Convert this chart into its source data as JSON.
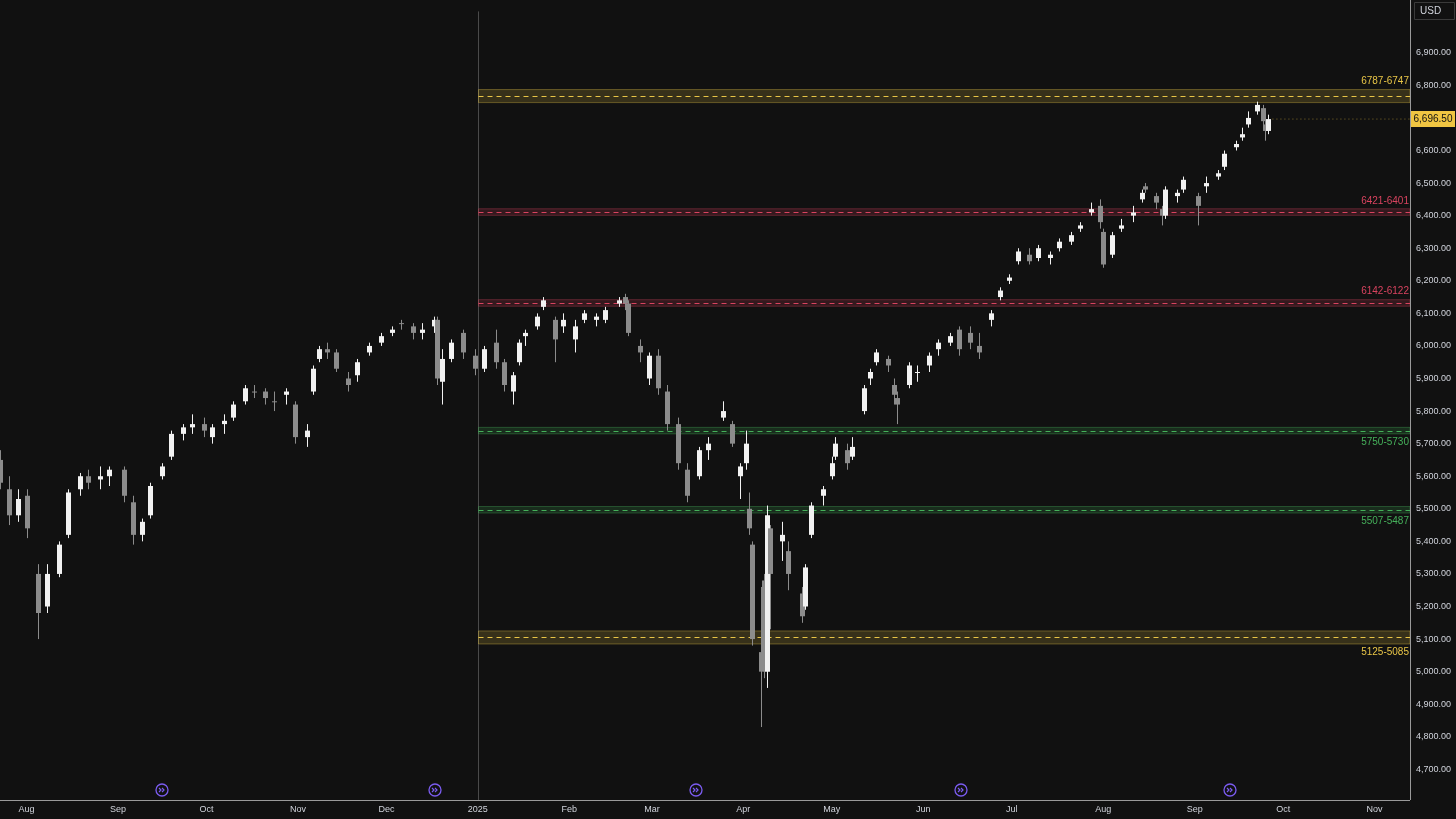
{
  "chart_data": {
    "type": "candlestick",
    "x": [
      "2024-07-23",
      "2024-07-26",
      "2024-07-29",
      "2024-08-01",
      "2024-08-05",
      "2024-08-08",
      "2024-08-12",
      "2024-08-15",
      "2024-08-19",
      "2024-08-22",
      "2024-08-26",
      "2024-08-29",
      "2024-09-03",
      "2024-09-06",
      "2024-09-09",
      "2024-09-12",
      "2024-09-16",
      "2024-09-19",
      "2024-09-23",
      "2024-09-26",
      "2024-09-30",
      "2024-10-03",
      "2024-10-07",
      "2024-10-10",
      "2024-10-14",
      "2024-10-17",
      "2024-10-21",
      "2024-10-24",
      "2024-10-28",
      "2024-10-31",
      "2024-11-04",
      "2024-11-06",
      "2024-11-08",
      "2024-11-11",
      "2024-11-14",
      "2024-11-18",
      "2024-11-21",
      "2024-11-25",
      "2024-11-29",
      "2024-12-03",
      "2024-12-06",
      "2024-12-10",
      "2024-12-13",
      "2024-12-17",
      "2024-12-18",
      "2024-12-20",
      "2024-12-23",
      "2024-12-27",
      "2024-12-31",
      "2025-01-03",
      "2025-01-07",
      "2025-01-10",
      "2025-01-13",
      "2025-01-15",
      "2025-01-17",
      "2025-01-21",
      "2025-01-23",
      "2025-01-27",
      "2025-01-30",
      "2025-02-03",
      "2025-02-06",
      "2025-02-10",
      "2025-02-13",
      "2025-02-18",
      "2025-02-20",
      "2025-02-21",
      "2025-02-25",
      "2025-02-28",
      "2025-03-03",
      "2025-03-06",
      "2025-03-10",
      "2025-03-13",
      "2025-03-17",
      "2025-03-20",
      "2025-03-25",
      "2025-03-28",
      "2025-03-31",
      "2025-04-02",
      "2025-04-03",
      "2025-04-04",
      "2025-04-07",
      "2025-04-08",
      "2025-04-09",
      "2025-04-10",
      "2025-04-14",
      "2025-04-16",
      "2025-04-21",
      "2025-04-22",
      "2025-04-24",
      "2025-04-28",
      "2025-05-01",
      "2025-05-02",
      "2025-05-06",
      "2025-05-08",
      "2025-05-12",
      "2025-05-14",
      "2025-05-16",
      "2025-05-20",
      "2025-05-22",
      "2025-05-23",
      "2025-05-27",
      "2025-05-30",
      "2025-06-03",
      "2025-06-06",
      "2025-06-10",
      "2025-06-13",
      "2025-06-17",
      "2025-06-20",
      "2025-06-24",
      "2025-06-27",
      "2025-06-30",
      "2025-07-03",
      "2025-07-07",
      "2025-07-10",
      "2025-07-14",
      "2025-07-17",
      "2025-07-21",
      "2025-07-24",
      "2025-07-28",
      "2025-07-31",
      "2025-08-01",
      "2025-08-04",
      "2025-08-07",
      "2025-08-11",
      "2025-08-14",
      "2025-08-15",
      "2025-08-19",
      "2025-08-21",
      "2025-08-22",
      "2025-08-26",
      "2025-08-28",
      "2025-09-02",
      "2025-09-05",
      "2025-09-09",
      "2025-09-11",
      "2025-09-15",
      "2025-09-17",
      "2025-09-19",
      "2025-09-22",
      "2025-09-24",
      "2025-09-25",
      "2025-09-26"
    ],
    "ohlc": [
      [
        5650,
        5680,
        5560,
        5580
      ],
      [
        5560,
        5600,
        5450,
        5480
      ],
      [
        5480,
        5560,
        5460,
        5530
      ],
      [
        5540,
        5560,
        5410,
        5440
      ],
      [
        5300,
        5330,
        5100,
        5180
      ],
      [
        5200,
        5330,
        5180,
        5300
      ],
      [
        5300,
        5400,
        5290,
        5390
      ],
      [
        5420,
        5560,
        5410,
        5550
      ],
      [
        5560,
        5610,
        5540,
        5600
      ],
      [
        5600,
        5620,
        5560,
        5580
      ],
      [
        5590,
        5630,
        5560,
        5600
      ],
      [
        5600,
        5630,
        5570,
        5620
      ],
      [
        5620,
        5630,
        5520,
        5540
      ],
      [
        5520,
        5540,
        5390,
        5420
      ],
      [
        5420,
        5470,
        5400,
        5460
      ],
      [
        5480,
        5580,
        5470,
        5570
      ],
      [
        5600,
        5640,
        5590,
        5630
      ],
      [
        5660,
        5740,
        5650,
        5730
      ],
      [
        5730,
        5760,
        5710,
        5750
      ],
      [
        5750,
        5790,
        5730,
        5760
      ],
      [
        5760,
        5780,
        5720,
        5740
      ],
      [
        5720,
        5760,
        5700,
        5750
      ],
      [
        5760,
        5790,
        5730,
        5770
      ],
      [
        5780,
        5830,
        5770,
        5820
      ],
      [
        5830,
        5880,
        5820,
        5870
      ],
      [
        5860,
        5880,
        5840,
        5860
      ],
      [
        5860,
        5870,
        5820,
        5840
      ],
      [
        5830,
        5860,
        5800,
        5830
      ],
      [
        5850,
        5870,
        5820,
        5860
      ],
      [
        5820,
        5830,
        5700,
        5720
      ],
      [
        5720,
        5760,
        5690,
        5740
      ],
      [
        5860,
        5940,
        5850,
        5930
      ],
      [
        5960,
        6000,
        5950,
        5990
      ],
      [
        5990,
        6010,
        5960,
        5980
      ],
      [
        5980,
        5990,
        5920,
        5930
      ],
      [
        5900,
        5920,
        5860,
        5880
      ],
      [
        5910,
        5960,
        5890,
        5950
      ],
      [
        5980,
        6010,
        5970,
        6000
      ],
      [
        6010,
        6040,
        6000,
        6030
      ],
      [
        6040,
        6060,
        6030,
        6050
      ],
      [
        6070,
        6080,
        6050,
        6070
      ],
      [
        6060,
        6070,
        6020,
        6040
      ],
      [
        6040,
        6070,
        6020,
        6050
      ],
      [
        6060,
        6090,
        6040,
        6080
      ],
      [
        6080,
        6090,
        5880,
        5900
      ],
      [
        5890,
        5990,
        5820,
        5960
      ],
      [
        5960,
        6020,
        5950,
        6010
      ],
      [
        6040,
        6050,
        5960,
        5980
      ],
      [
        5970,
        5990,
        5910,
        5930
      ],
      [
        5930,
        6000,
        5920,
        5990
      ],
      [
        6010,
        6050,
        5930,
        5950
      ],
      [
        5950,
        5960,
        5860,
        5880
      ],
      [
        5860,
        5920,
        5820,
        5910
      ],
      [
        5950,
        6020,
        5940,
        6010
      ],
      [
        6030,
        6050,
        6000,
        6040
      ],
      [
        6060,
        6100,
        6050,
        6090
      ],
      [
        6120,
        6150,
        6110,
        6140
      ],
      [
        6080,
        6090,
        5950,
        6020
      ],
      [
        6060,
        6100,
        6040,
        6080
      ],
      [
        6020,
        6080,
        5980,
        6060
      ],
      [
        6080,
        6110,
        6070,
        6100
      ],
      [
        6080,
        6100,
        6060,
        6090
      ],
      [
        6080,
        6120,
        6070,
        6110
      ],
      [
        6130,
        6150,
        6120,
        6140
      ],
      [
        6150,
        6160,
        6110,
        6130
      ],
      [
        6130,
        6140,
        6030,
        6040
      ],
      [
        6000,
        6020,
        5950,
        5980
      ],
      [
        5900,
        5980,
        5880,
        5970
      ],
      [
        5970,
        5990,
        5850,
        5870
      ],
      [
        5860,
        5880,
        5740,
        5760
      ],
      [
        5760,
        5780,
        5620,
        5640
      ],
      [
        5620,
        5640,
        5520,
        5540
      ],
      [
        5600,
        5690,
        5590,
        5680
      ],
      [
        5680,
        5720,
        5650,
        5700
      ],
      [
        5780,
        5830,
        5770,
        5800
      ],
      [
        5760,
        5770,
        5690,
        5700
      ],
      [
        5600,
        5640,
        5530,
        5630
      ],
      [
        5640,
        5740,
        5620,
        5700
      ],
      [
        5500,
        5550,
        5420,
        5440
      ],
      [
        5390,
        5400,
        5080,
        5100
      ],
      [
        5060,
        5260,
        4830,
        5000
      ],
      [
        5280,
        5300,
        4980,
        5020
      ],
      [
        5000,
        5510,
        4950,
        5480
      ],
      [
        5440,
        5450,
        5130,
        5300
      ],
      [
        5400,
        5460,
        5340,
        5420
      ],
      [
        5370,
        5400,
        5250,
        5300
      ],
      [
        5240,
        5260,
        5150,
        5170
      ],
      [
        5200,
        5330,
        5190,
        5320
      ],
      [
        5420,
        5520,
        5410,
        5510
      ],
      [
        5540,
        5570,
        5510,
        5560
      ],
      [
        5600,
        5660,
        5590,
        5640
      ],
      [
        5660,
        5720,
        5650,
        5700
      ],
      [
        5680,
        5700,
        5620,
        5640
      ],
      [
        5660,
        5720,
        5650,
        5690
      ],
      [
        5800,
        5880,
        5790,
        5870
      ],
      [
        5900,
        5930,
        5880,
        5920
      ],
      [
        5950,
        5990,
        5940,
        5980
      ],
      [
        5960,
        5970,
        5920,
        5940
      ],
      [
        5880,
        5900,
        5820,
        5850
      ],
      [
        5840,
        5860,
        5760,
        5820
      ],
      [
        5880,
        5950,
        5870,
        5940
      ],
      [
        5920,
        5940,
        5890,
        5920
      ],
      [
        5940,
        5980,
        5920,
        5970
      ],
      [
        5990,
        6020,
        5970,
        6010
      ],
      [
        6010,
        6040,
        6000,
        6030
      ],
      [
        6050,
        6060,
        5970,
        5990
      ],
      [
        6040,
        6060,
        5990,
        6010
      ],
      [
        6000,
        6040,
        5960,
        5980
      ],
      [
        6080,
        6110,
        6060,
        6100
      ],
      [
        6150,
        6180,
        6140,
        6170
      ],
      [
        6200,
        6220,
        6190,
        6210
      ],
      [
        6260,
        6300,
        6250,
        6290
      ],
      [
        6280,
        6300,
        6250,
        6260
      ],
      [
        6270,
        6310,
        6260,
        6300
      ],
      [
        6270,
        6290,
        6250,
        6280
      ],
      [
        6300,
        6330,
        6290,
        6320
      ],
      [
        6320,
        6350,
        6310,
        6340
      ],
      [
        6360,
        6380,
        6350,
        6370
      ],
      [
        6410,
        6440,
        6400,
        6420
      ],
      [
        6430,
        6450,
        6360,
        6380
      ],
      [
        6350,
        6360,
        6240,
        6250
      ],
      [
        6280,
        6350,
        6270,
        6340
      ],
      [
        6360,
        6390,
        6350,
        6370
      ],
      [
        6400,
        6430,
        6380,
        6410
      ],
      [
        6450,
        6480,
        6440,
        6470
      ],
      [
        6490,
        6500,
        6470,
        6480
      ],
      [
        6460,
        6470,
        6420,
        6440
      ],
      [
        6420,
        6430,
        6370,
        6400
      ],
      [
        6400,
        6490,
        6390,
        6480
      ],
      [
        6460,
        6480,
        6440,
        6470
      ],
      [
        6480,
        6520,
        6470,
        6510
      ],
      [
        6460,
        6470,
        6370,
        6430
      ],
      [
        6490,
        6520,
        6470,
        6500
      ],
      [
        6520,
        6540,
        6510,
        6530
      ],
      [
        6550,
        6600,
        6540,
        6590
      ],
      [
        6610,
        6630,
        6600,
        6620
      ],
      [
        6640,
        6670,
        6630,
        6650
      ],
      [
        6680,
        6720,
        6670,
        6700
      ],
      [
        6720,
        6750,
        6710,
        6740
      ],
      [
        6730,
        6740,
        6670,
        6690
      ],
      [
        6680,
        6700,
        6630,
        6660
      ],
      [
        6660,
        6710,
        6650,
        6696.5
      ]
    ],
    "colors": [
      "#8c8c8c",
      "#8c8c8c",
      "#f2f2f2",
      "#8c8c8c",
      "#8c8c8c",
      "#f2f2f2",
      "#f2f2f2",
      "#f2f2f2",
      "#f2f2f2",
      "#8c8c8c",
      "#f2f2f2",
      "#f2f2f2",
      "#8c8c8c",
      "#8c8c8c",
      "#f2f2f2",
      "#f2f2f2",
      "#f2f2f2",
      "#f2f2f2",
      "#f2f2f2",
      "#f2f2f2",
      "#8c8c8c",
      "#f2f2f2",
      "#f2f2f2",
      "#f2f2f2",
      "#f2f2f2",
      "#8c8c8c",
      "#8c8c8c",
      "#8c8c8c",
      "#f2f2f2",
      "#8c8c8c",
      "#f2f2f2",
      "#f2f2f2",
      "#f2f2f2",
      "#8c8c8c",
      "#8c8c8c",
      "#8c8c8c",
      "#f2f2f2",
      "#f2f2f2",
      "#f2f2f2",
      "#f2f2f2",
      "#8c8c8c",
      "#8c8c8c",
      "#f2f2f2",
      "#f2f2f2",
      "#8c8c8c",
      "#f2f2f2",
      "#f2f2f2",
      "#8c8c8c",
      "#8c8c8c",
      "#f2f2f2",
      "#8c8c8c",
      "#8c8c8c",
      "#f2f2f2",
      "#f2f2f2",
      "#f2f2f2",
      "#f2f2f2",
      "#f2f2f2",
      "#8c8c8c",
      "#f2f2f2",
      "#f2f2f2",
      "#f2f2f2",
      "#f2f2f2",
      "#f2f2f2",
      "#f2f2f2",
      "#8c8c8c",
      "#8c8c8c",
      "#8c8c8c",
      "#f2f2f2",
      "#8c8c8c",
      "#8c8c8c",
      "#8c8c8c",
      "#8c8c8c",
      "#f2f2f2",
      "#f2f2f2",
      "#f2f2f2",
      "#8c8c8c",
      "#f2f2f2",
      "#f2f2f2",
      "#8c8c8c",
      "#8c8c8c",
      "#8c8c8c",
      "#8c8c8c",
      "#f2f2f2",
      "#8c8c8c",
      "#f2f2f2",
      "#8c8c8c",
      "#8c8c8c",
      "#f2f2f2",
      "#f2f2f2",
      "#f2f2f2",
      "#f2f2f2",
      "#f2f2f2",
      "#8c8c8c",
      "#f2f2f2",
      "#f2f2f2",
      "#f2f2f2",
      "#f2f2f2",
      "#8c8c8c",
      "#8c8c8c",
      "#8c8c8c",
      "#f2f2f2",
      "#f2f2f2",
      "#f2f2f2",
      "#f2f2f2",
      "#f2f2f2",
      "#8c8c8c",
      "#8c8c8c",
      "#8c8c8c",
      "#f2f2f2",
      "#f2f2f2",
      "#f2f2f2",
      "#f2f2f2",
      "#8c8c8c",
      "#f2f2f2",
      "#f2f2f2",
      "#f2f2f2",
      "#f2f2f2",
      "#f2f2f2",
      "#f2f2f2",
      "#8c8c8c",
      "#8c8c8c",
      "#f2f2f2",
      "#f2f2f2",
      "#f2f2f2",
      "#f2f2f2",
      "#8c8c8c",
      "#8c8c8c",
      "#8c8c8c",
      "#f2f2f2",
      "#f2f2f2",
      "#f2f2f2",
      "#8c8c8c",
      "#f2f2f2",
      "#f2f2f2",
      "#f2f2f2",
      "#f2f2f2",
      "#f2f2f2",
      "#f2f2f2",
      "#f2f2f2",
      "#8c8c8c",
      "#8c8c8c",
      "#f2f2f2"
    ],
    "xlim": [
      "2024-07-23",
      "2025-11-13"
    ],
    "xticks": [
      {
        "value": "2024-08-01",
        "label": "Aug"
      },
      {
        "value": "2024-09-01",
        "label": "Sep"
      },
      {
        "value": "2024-10-01",
        "label": "Oct"
      },
      {
        "value": "2024-11-01",
        "label": "Nov"
      },
      {
        "value": "2024-12-01",
        "label": "Dec"
      },
      {
        "value": "2025-01-01",
        "label": "2025"
      },
      {
        "value": "2025-02-01",
        "label": "Feb"
      },
      {
        "value": "2025-03-01",
        "label": "Mar"
      },
      {
        "value": "2025-04-01",
        "label": "Apr"
      },
      {
        "value": "2025-05-01",
        "label": "May"
      },
      {
        "value": "2025-06-01",
        "label": "Jun"
      },
      {
        "value": "2025-07-01",
        "label": "Jul"
      },
      {
        "value": "2025-08-01",
        "label": "Aug"
      },
      {
        "value": "2025-09-01",
        "label": "Sep"
      },
      {
        "value": "2025-10-01",
        "label": "Oct"
      },
      {
        "value": "2025-11-01",
        "label": "Nov"
      }
    ],
    "ylim": [
      4606,
      7027
    ],
    "yticks": [
      {
        "value": 4700,
        "label": "4,700.00"
      },
      {
        "value": 4800,
        "label": "4,800.00"
      },
      {
        "value": 4900,
        "label": "4,900.00"
      },
      {
        "value": 5000,
        "label": "5,000.00"
      },
      {
        "value": 5100,
        "label": "5,100.00"
      },
      {
        "value": 5200,
        "label": "5,200.00"
      },
      {
        "value": 5300,
        "label": "5,300.00"
      },
      {
        "value": 5400,
        "label": "5,400.00"
      },
      {
        "value": 5500,
        "label": "5,500.00"
      },
      {
        "value": 5600,
        "label": "5,600.00"
      },
      {
        "value": 5700,
        "label": "5,700.00"
      },
      {
        "value": 5800,
        "label": "5,800.00"
      },
      {
        "value": 5900,
        "label": "5,900.00"
      },
      {
        "value": 6000,
        "label": "6,000.00"
      },
      {
        "value": 6100,
        "label": "6,100.00"
      },
      {
        "value": 6200,
        "label": "6,200.00"
      },
      {
        "value": 6300,
        "label": "6,300.00"
      },
      {
        "value": 6400,
        "label": "6,400.00"
      },
      {
        "value": 6500,
        "label": "6,500.00"
      },
      {
        "value": 6600,
        "label": "6,600.00"
      },
      {
        "value": 6800,
        "label": "6,800.00"
      },
      {
        "value": 6900,
        "label": "6,900.00"
      }
    ],
    "bands": [
      {
        "axis": "y",
        "from": 6747,
        "to": 6787,
        "label": "6787-6747",
        "color": "#e8c547"
      },
      {
        "axis": "y",
        "from": 6401,
        "to": 6421,
        "label": "6421-6401",
        "color": "#d9435f"
      },
      {
        "axis": "y",
        "from": 6122,
        "to": 6142,
        "label": "6142-6122",
        "color": "#d9435f"
      },
      {
        "axis": "y",
        "from": 5730,
        "to": 5750,
        "label": "5750-5730",
        "color": "#45b05a"
      },
      {
        "axis": "y",
        "from": 5487,
        "to": 5507,
        "label": "5507-5487",
        "color": "#45b05a"
      },
      {
        "axis": "y",
        "from": 5085,
        "to": 5125,
        "label": "5125-5085",
        "color": "#e8c547"
      }
    ],
    "ref_lines": [
      {
        "axis": "x",
        "value": "2025-01-01",
        "color": "#4a4a4a"
      }
    ],
    "annotations": [
      "USD",
      {
        "text": "6,696.50",
        "x": "2025-09-26",
        "y": 6696.5
      }
    ]
  }
}
